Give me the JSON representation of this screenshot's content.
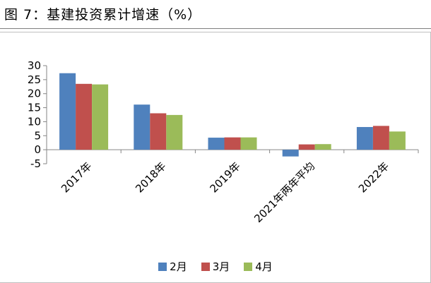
{
  "header": {
    "title": "图 7：基建投资累计增速（%）"
  },
  "chart_data": {
    "type": "bar",
    "title": "",
    "xlabel": "",
    "ylabel": "",
    "categories": [
      "2017年",
      "2018年",
      "2019年",
      "2021年两年平均",
      "2022年"
    ],
    "series": [
      {
        "name": "2月",
        "color": "#4f81bd",
        "values": [
          27.3,
          16.1,
          4.3,
          -2.4,
          8.1
        ]
      },
      {
        "name": "3月",
        "color": "#c0504d",
        "values": [
          23.5,
          13.0,
          4.4,
          1.9,
          8.5
        ]
      },
      {
        "name": "4月",
        "color": "#9bbb59",
        "values": [
          23.3,
          12.4,
          4.4,
          2.0,
          6.5
        ]
      }
    ],
    "ylim": [
      -5,
      30
    ],
    "yticks": [
      -5,
      0,
      5,
      10,
      15,
      20,
      25,
      30
    ],
    "ytick_labels": [
      "-5",
      "0",
      "5",
      "10",
      "15",
      "20",
      "25",
      "30"
    ],
    "grid": false,
    "legend": "bottom"
  }
}
